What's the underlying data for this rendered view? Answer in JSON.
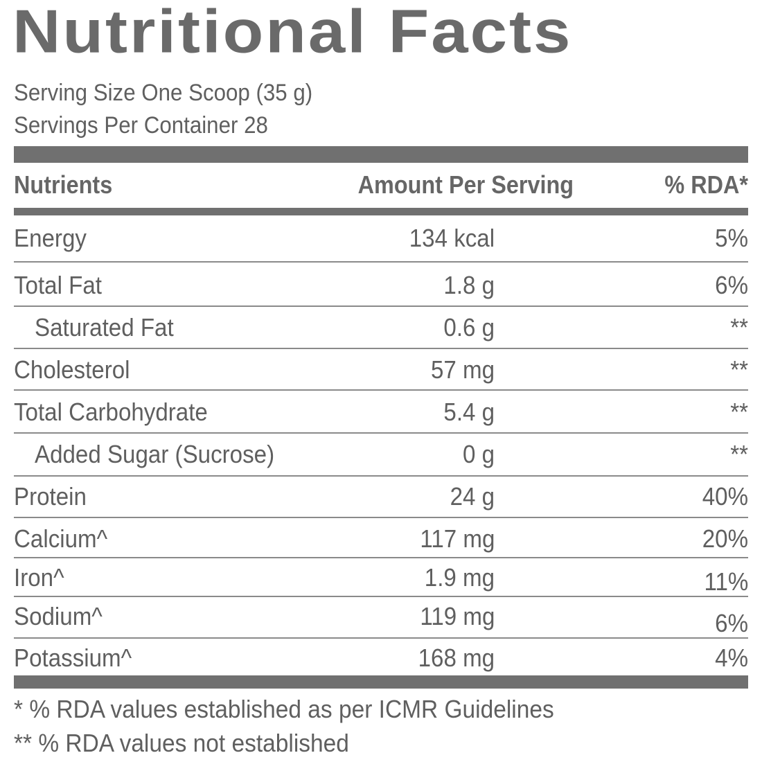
{
  "title": "Nutritional Facts",
  "serving_size": "Serving Size One Scoop (35 g)",
  "servings_per_container": "Servings Per Container 28",
  "headers": {
    "nutrients": "Nutrients",
    "amount": "Amount Per Serving",
    "rda": "% RDA*"
  },
  "rows": [
    {
      "name": "Energy",
      "amount": "134 kcal",
      "rda": "5%"
    },
    {
      "name": "Total Fat",
      "amount": "1.8 g",
      "rda": "6%"
    },
    {
      "name": "Saturated Fat",
      "amount": "0.6 g",
      "rda": "**"
    },
    {
      "name": "Cholesterol",
      "amount": "57 mg",
      "rda": "**"
    },
    {
      "name": "Total Carbohydrate",
      "amount": "5.4 g",
      "rda": "**"
    },
    {
      "name": "Added Sugar (Sucrose)",
      "amount": "0 g",
      "rda": "**"
    },
    {
      "name": "Protein",
      "amount": "24 g",
      "rda": "40%"
    },
    {
      "name": "Calcium^",
      "amount": "117 mg",
      "rda": "20%"
    },
    {
      "name": "Iron^",
      "amount": "1.9 mg",
      "rda": "11%"
    },
    {
      "name": "Sodium^",
      "amount": "119 mg",
      "rda": "6%"
    },
    {
      "name": "Potassium^",
      "amount": "168 mg",
      "rda": "4%"
    }
  ],
  "footnotes": [
    "* % RDA values established as per ICMR Guidelines",
    "** % RDA values not established"
  ],
  "colors": {
    "text": "#5f5f5f",
    "bar": "#707070",
    "rule": "#8a8a8a"
  }
}
